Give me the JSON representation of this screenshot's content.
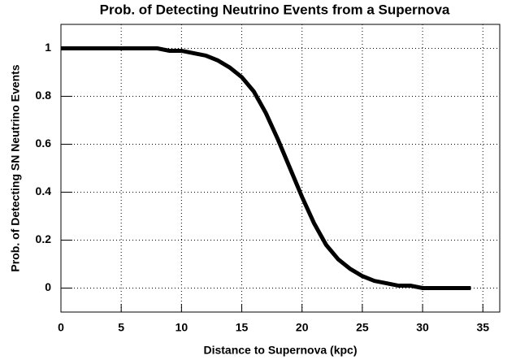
{
  "chart_data": {
    "type": "line",
    "title": "Prob. of Detecting Neutrino Events from a Supernova",
    "xlabel": "Distance to Supernova (kpc)",
    "ylabel": "Prob. of Detecting SN Neutrino Events",
    "x": [
      0,
      1,
      2,
      3,
      4,
      5,
      6,
      7,
      8,
      9,
      10,
      11,
      12,
      13,
      14,
      15,
      16,
      17,
      18,
      19,
      20,
      21,
      22,
      23,
      24,
      25,
      26,
      27,
      28,
      29,
      30,
      31,
      32,
      33,
      34
    ],
    "series": [
      {
        "color": "#000000",
        "values": [
          1,
          1,
          1,
          1,
          1,
          1,
          1,
          1,
          1,
          0.99,
          0.99,
          0.98,
          0.97,
          0.95,
          0.92,
          0.88,
          0.82,
          0.73,
          0.62,
          0.5,
          0.38,
          0.27,
          0.18,
          0.12,
          0.08,
          0.05,
          0.03,
          0.02,
          0.01,
          0.01,
          0,
          0,
          0,
          0,
          0
        ]
      }
    ],
    "xlim": [
      0,
      36.4
    ],
    "xticks": [
      0,
      5,
      10,
      15,
      20,
      25,
      30,
      35
    ],
    "ylim": [
      -0.1,
      1.1
    ],
    "yticks": [
      0,
      0.2,
      0.4,
      0.6,
      0.8,
      1
    ],
    "grid": true
  }
}
